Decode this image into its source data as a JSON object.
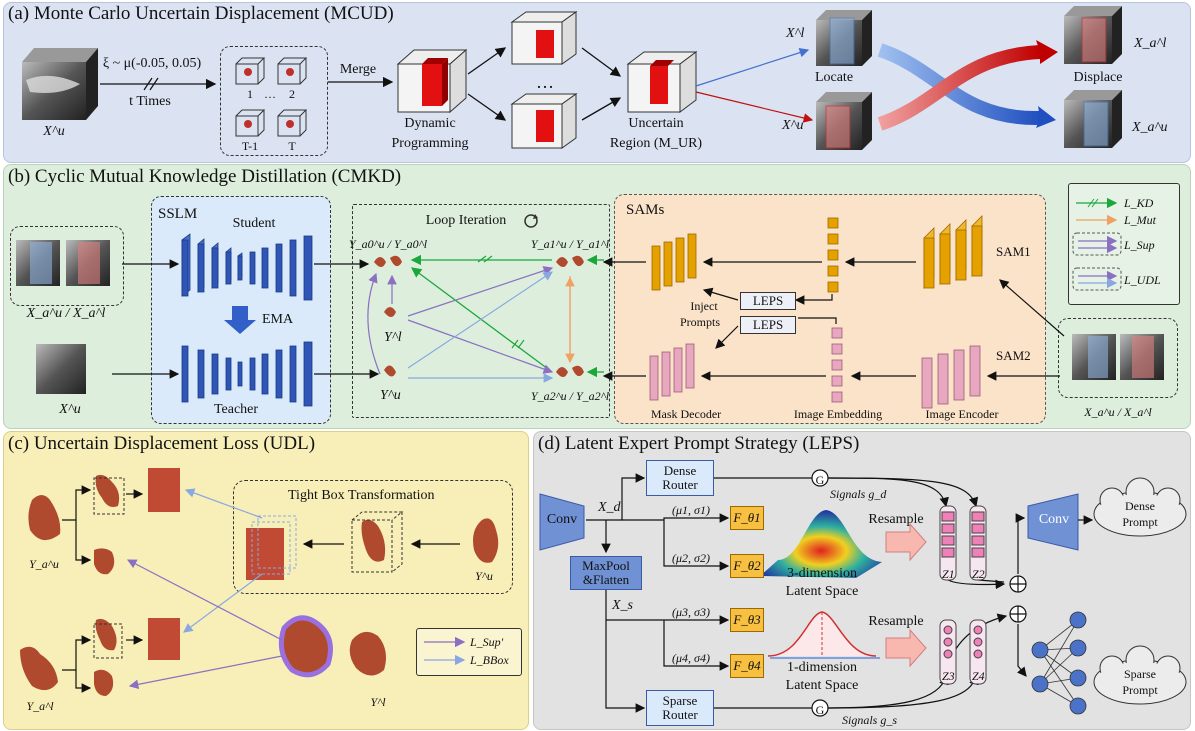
{
  "colors": {
    "mcud_bg": "#dbe3f2",
    "cmkd_bg": "#ddeedd",
    "udl_bg": "#f8efb8",
    "leps_bg": "#e0e0e0",
    "sslm_bg": "#daeafa",
    "sams_bg": "#fbe3c9",
    "encoder_blue": "#2f55b5",
    "sam_orange": "#e5a100",
    "sam_pink": "#e7a8bf",
    "kd_green": "#1aa83b",
    "mut_orange": "#f0a060",
    "sup_purple": "#8a6fc2",
    "udl_blue": "#8aa8e0",
    "displace_red": "#d01818",
    "conv_blue": "#7091d4",
    "router_blue": "#dbeafa",
    "expert_orange": "#f8c040"
  },
  "mcud": {
    "title": "(a) Monte Carlo Uncertain Displacement (MCUD)",
    "input": "X^u",
    "sampling": "ξ ~ μ(-0.05, 0.05)",
    "times": "t Times",
    "samples": [
      "1",
      "…",
      "2",
      "T-1",
      "T"
    ],
    "merge": "Merge",
    "dp": [
      "Dynamic",
      "Programming"
    ],
    "dots": "…",
    "uncertain": [
      "Uncertain",
      "Region (M_UR)"
    ],
    "xl": "X^l",
    "xu": "X^u",
    "locate": "Locate",
    "displace": "Displace",
    "xal": "X_a^l",
    "xau": "X_a^u"
  },
  "cmkd": {
    "title": "(b) Cyclic Mutual Knowledge Distillation (CMKD)",
    "sslm": "SSLM",
    "student": "Student",
    "ema": "EMA",
    "teacher": "Teacher",
    "in_top": "X_a^u / X_a^l",
    "in_bottom": "X^u",
    "loop": "Loop Iteration",
    "ya0": "Y_a0^u / Y_a0^l",
    "ya1": "Y_a1^u / Y_a1^l",
    "ya2": "Y_a2^u / Y_a2^l",
    "yl": "Y^l",
    "yu": "Y^u",
    "sams": "SAMs",
    "sam1": "SAM1",
    "sam2": "SAM2",
    "leps": "LEPS",
    "inject": [
      "Inject",
      "Prompts"
    ],
    "mask_decoder": "Mask Decoder",
    "image_embedding": "Image Embedding",
    "image_encoder": "Image Encoder",
    "in_right": "X_a^u / X_a^l",
    "legend": [
      "L_KD",
      "L_Mut",
      "L_Sup",
      "L_UDL"
    ]
  },
  "udl": {
    "title": "(c) Uncertain Displacement Loss (UDL)",
    "tight": "Tight Box Transformation",
    "yau": "Y_a^u",
    "yu": "Y^u",
    "yal": "Y_a^l",
    "yl": "Y^l",
    "legend": [
      "L_Sup'",
      "L_BBox"
    ]
  },
  "leps": {
    "title": "(d) Latent Expert Prompt Strategy (LEPS)",
    "conv": "Conv",
    "dense_router": [
      "Dense",
      "Router"
    ],
    "sparse_router": [
      "Sparse",
      "Router"
    ],
    "xd": "X_d",
    "xs": "X_s",
    "maxpool": [
      "MaxPool",
      "&Flatten"
    ],
    "params": [
      "(μ1, σ1)",
      "(μ2, σ2)",
      "(μ3, σ3)",
      "(μ4, σ4)"
    ],
    "experts": [
      "F_θ1",
      "F_θ2",
      "F_θ3",
      "F_θ4"
    ],
    "signals_d": "Signals g_d",
    "signals_s": "Signals g_s",
    "gate": "G",
    "latent3": [
      "3-dimension",
      "Latent Space"
    ],
    "latent1": [
      "1-dimension",
      "Latent Space"
    ],
    "resample": "Resample",
    "z": [
      "Z1",
      "Z2",
      "Z3",
      "Z4"
    ],
    "dense_prompt": [
      "Dense",
      "Prompt"
    ],
    "sparse_prompt": [
      "Sparse",
      "Prompt"
    ]
  }
}
